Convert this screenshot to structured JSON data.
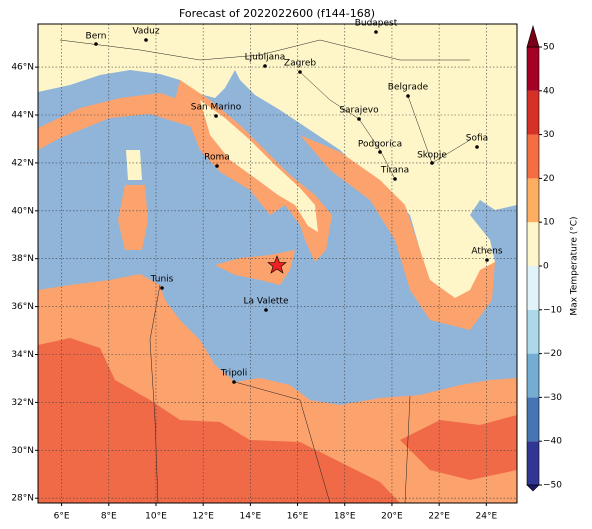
{
  "map": {
    "title": "Forecast of 2022022600 (f144-168)",
    "lonlim": [
      5,
      25.3
    ],
    "latlim": [
      27.8,
      47.8
    ],
    "lonticks": [
      {
        "value": 6,
        "label": "6°E"
      },
      {
        "value": 8,
        "label": "8°E"
      },
      {
        "value": 10,
        "label": "10°E"
      },
      {
        "value": 12,
        "label": "12°E"
      },
      {
        "value": 14,
        "label": "14°E"
      },
      {
        "value": 16,
        "label": "16°E"
      },
      {
        "value": 18,
        "label": "18°E"
      },
      {
        "value": 20,
        "label": "20°E"
      },
      {
        "value": 22,
        "label": "22°E"
      },
      {
        "value": 24,
        "label": "24°E"
      }
    ],
    "latticks": [
      {
        "value": 28,
        "label": "28°N"
      },
      {
        "value": 30,
        "label": "30°N"
      },
      {
        "value": 32,
        "label": "32°N"
      },
      {
        "value": 34,
        "label": "34°N"
      },
      {
        "value": 36,
        "label": "36°N"
      },
      {
        "value": 38,
        "label": "38°N"
      },
      {
        "value": 40,
        "label": "40°N"
      },
      {
        "value": 42,
        "label": "42°N"
      },
      {
        "value": 44,
        "label": "44°N"
      },
      {
        "value": 46,
        "label": "46°N"
      }
    ],
    "grid": true,
    "cities": [
      "Bern",
      "Vaduz",
      "Budapest",
      "Ljubljana",
      "Zagreb",
      "Belgrade",
      "Sarajevo",
      "San Marino",
      "Sofia",
      "Podgorica",
      "Skopje",
      "Roma",
      "Tirana",
      "Athens",
      "Tunis",
      "La Valette",
      "Tripoli"
    ],
    "colorbar": {
      "label": "Max Temperature (°C)",
      "levels": [
        {
          "value": -50,
          "label": "−50"
        },
        {
          "value": -40,
          "label": "−40"
        },
        {
          "value": -30,
          "label": "−30"
        },
        {
          "value": -20,
          "label": "−20"
        },
        {
          "value": -10,
          "label": "−10"
        },
        0,
        10,
        20,
        30,
        40,
        50
      ],
      "colors": [
        "#313695",
        "#4575b4",
        "#74add1",
        "#abd9e9",
        "#e0f3f8",
        "#fef6c8",
        "#fdae61",
        "#f46d43",
        "#d73027",
        "#a50026"
      ],
      "under_color": "#1a1a6e",
      "over_color": "#7a0018"
    }
  }
}
